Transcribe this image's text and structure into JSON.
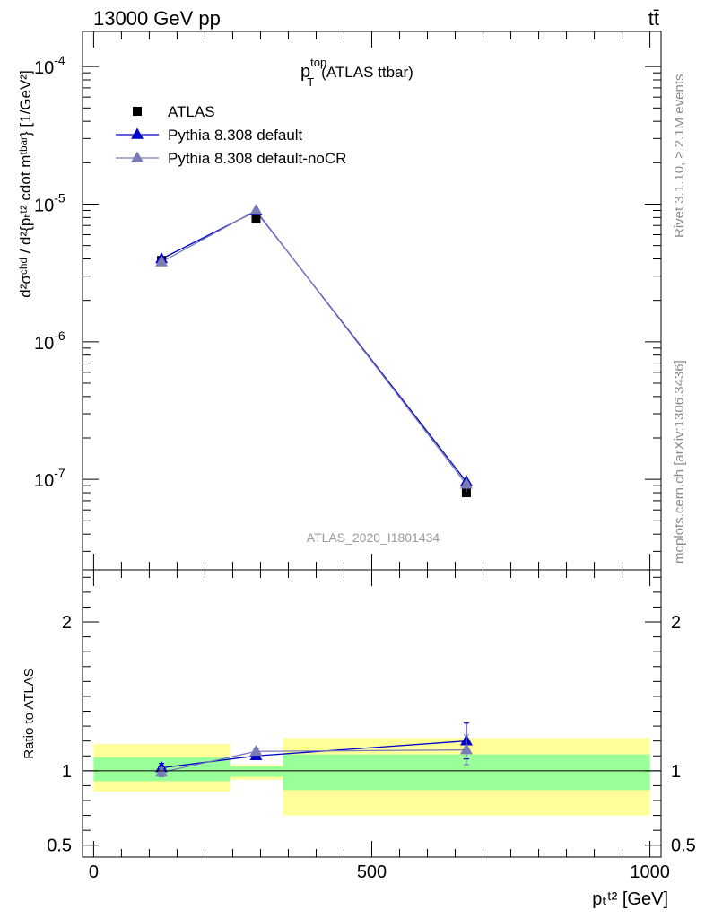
{
  "header": {
    "energy_label": "13000 GeV pp",
    "process_label": "tt̄"
  },
  "side_labels": {
    "rivet": "Rivet 3.1.10, ≥ 2.1M events",
    "mcplots": "mcplots.cern.ch [arXiv:1306.3436]"
  },
  "chart_data": [
    {
      "type": "line",
      "panel": "main",
      "title": {
        "main": "p",
        "sup": "top",
        "sub": "T",
        "suffix": "(ATLAS ttbar)"
      },
      "analysis_label": "ATLAS_2020_I1801434",
      "y_scale": "log",
      "ylim": [
        2.2e-08,
        0.00018
      ],
      "xlim": [
        -20,
        1020
      ],
      "ylabel": "d²σᶜʰᵈ / d²{pₜᵗ² cdot mᵗᵇᵃʳ} [1/GeV²]",
      "y_ticks": [
        {
          "value": 1e-07,
          "base": "10",
          "exp": "-7"
        },
        {
          "value": 1e-06,
          "base": "10",
          "exp": "-6"
        },
        {
          "value": 1e-05,
          "base": "10",
          "exp": "-5"
        },
        {
          "value": 0.0001,
          "base": "10",
          "exp": "-4"
        }
      ],
      "legend": {
        "placement": "top-left"
      },
      "series": [
        {
          "name": "ATLAS",
          "marker": "square",
          "color": "#000000",
          "x": [
            122,
            292,
            670
          ],
          "y": [
            3.9e-06,
            7.8e-06,
            8e-08
          ]
        },
        {
          "name": "Pythia 8.308 default",
          "marker": "triangle",
          "color": "#0000cc",
          "x": [
            122,
            292,
            670
          ],
          "y": [
            4e-06,
            8.9e-06,
            9.6e-08
          ],
          "err_rel": [
            0.03,
            0.02,
            0.12
          ]
        },
        {
          "name": "Pythia 8.308 default-noCR",
          "marker": "triangle",
          "color": "#7b7bb8",
          "x": [
            122,
            292,
            670
          ],
          "y": [
            3.8e-06,
            9e-06,
            9.2e-08
          ],
          "err_rel": [
            0.03,
            0.02,
            0.12
          ]
        }
      ]
    },
    {
      "type": "line",
      "panel": "ratio",
      "ylabel": "Ratio to ATLAS",
      "xlabel": "pₜᵗ² [GeV]",
      "ylim": [
        0.42,
        2.35
      ],
      "xlim": [
        -20,
        1020
      ],
      "x_ticks": [
        0,
        500,
        1000
      ],
      "y_ticks": [
        0.5,
        1,
        2
      ],
      "reference_line": 1,
      "uncertainty_bands": [
        {
          "x0": 0,
          "x1": 245,
          "total": [
            0.86,
            1.18
          ],
          "stat": [
            0.93,
            1.09
          ]
        },
        {
          "x0": 245,
          "x1": 340,
          "total": [
            0.94,
            1.04
          ],
          "stat": [
            0.96,
            1.03
          ]
        },
        {
          "x0": 340,
          "x1": 1000,
          "total": [
            0.7,
            1.22
          ],
          "stat": [
            0.87,
            1.11
          ]
        }
      ],
      "series": [
        {
          "name": "Pythia 8.308 default",
          "color": "#0000cc",
          "x": [
            122,
            292,
            670
          ],
          "y": [
            1.02,
            1.1,
            1.2
          ],
          "err": [
            0.03,
            0.02,
            0.12
          ]
        },
        {
          "name": "Pythia 8.308 default-noCR",
          "color": "#7b7bb8",
          "x": [
            122,
            292,
            670
          ],
          "y": [
            0.99,
            1.13,
            1.14
          ],
          "err": [
            0.03,
            0.02,
            0.1
          ]
        }
      ]
    }
  ]
}
